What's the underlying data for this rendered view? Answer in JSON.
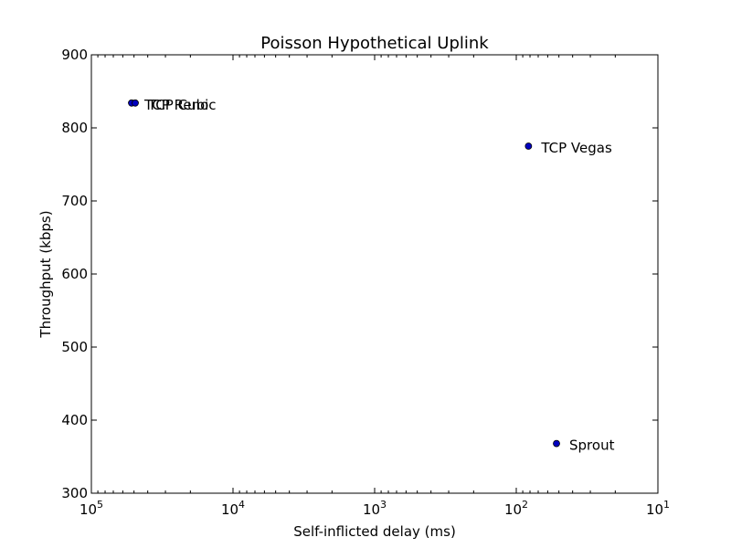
{
  "chart_data": {
    "type": "scatter",
    "title": "Poisson Hypothetical Uplink",
    "xlabel": "Self-inflicted delay (ms)",
    "ylabel": "Throughput (kbps)",
    "x_scale": "log",
    "x_inverted": true,
    "xlim": [
      100000,
      10
    ],
    "ylim": [
      300,
      900
    ],
    "xticks": [
      {
        "base": "10",
        "exp": "5",
        "value": 100000
      },
      {
        "base": "10",
        "exp": "4",
        "value": 10000
      },
      {
        "base": "10",
        "exp": "3",
        "value": 1000
      },
      {
        "base": "10",
        "exp": "2",
        "value": 100
      },
      {
        "base": "10",
        "exp": "1",
        "value": 10
      }
    ],
    "yticks": [
      "300",
      "400",
      "500",
      "600",
      "700",
      "800",
      "900"
    ],
    "grid": false,
    "marker_color": "#0000bf",
    "points": [
      {
        "label": "TCP Reno",
        "x": 52000,
        "y": 834
      },
      {
        "label": "TCP Cubic",
        "x": 49000,
        "y": 834
      },
      {
        "label": "TCP Vegas",
        "x": 82,
        "y": 775
      },
      {
        "label": "Sprout",
        "x": 52,
        "y": 368
      }
    ]
  }
}
